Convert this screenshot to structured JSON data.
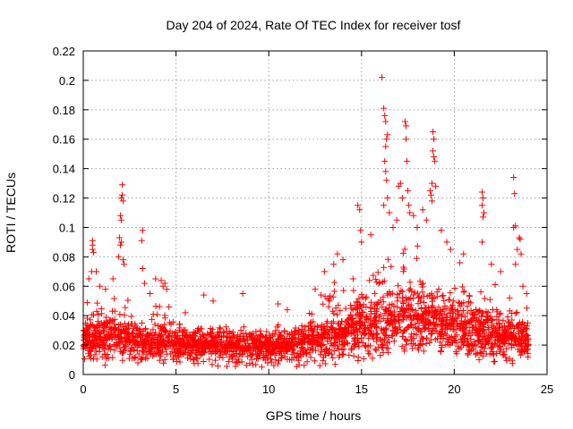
{
  "chart_data": {
    "type": "scatter",
    "title": "Day 204 of 2024, Rate Of TEC Index for receiver tosf",
    "xlabel": "GPS time / hours",
    "ylabel": "ROTI / TECUs",
    "xlim": [
      0,
      25
    ],
    "ylim": [
      0,
      0.22
    ],
    "xticks": [
      0,
      5,
      10,
      15,
      20,
      25
    ],
    "yticks": [
      0,
      0.02,
      0.04,
      0.06,
      0.08,
      0.1,
      0.12,
      0.14,
      0.16,
      0.18,
      0.2,
      0.22
    ],
    "grid": true,
    "marker": "+",
    "color": "#ff0000",
    "profile": {
      "x": [
        0,
        1,
        2,
        3,
        4,
        5,
        6,
        7,
        8,
        9,
        10,
        11,
        12,
        13,
        14,
        15,
        16,
        17,
        18,
        19,
        20,
        21,
        22,
        23,
        24
      ],
      "median": [
        0.022,
        0.024,
        0.024,
        0.022,
        0.022,
        0.02,
        0.019,
        0.019,
        0.018,
        0.018,
        0.018,
        0.018,
        0.021,
        0.024,
        0.026,
        0.03,
        0.034,
        0.036,
        0.036,
        0.034,
        0.031,
        0.028,
        0.026,
        0.024,
        0.022
      ],
      "upper": [
        0.045,
        0.055,
        0.055,
        0.045,
        0.05,
        0.04,
        0.038,
        0.037,
        0.035,
        0.034,
        0.033,
        0.035,
        0.045,
        0.06,
        0.068,
        0.075,
        0.085,
        0.09,
        0.088,
        0.08,
        0.07,
        0.065,
        0.062,
        0.055,
        0.045
      ]
    },
    "points": [
      {
        "x": 0.5,
        "y": 0.091
      },
      {
        "x": 0.5,
        "y": 0.088
      },
      {
        "x": 0.5,
        "y": 0.085
      },
      {
        "x": 0.55,
        "y": 0.083
      },
      {
        "x": 0.45,
        "y": 0.07
      },
      {
        "x": 0.3,
        "y": 0.065
      },
      {
        "x": 0.7,
        "y": 0.07
      },
      {
        "x": 0.9,
        "y": 0.06
      },
      {
        "x": 1.2,
        "y": 0.058
      },
      {
        "x": 1.6,
        "y": 0.065
      },
      {
        "x": 1.9,
        "y": 0.08
      },
      {
        "x": 1.95,
        "y": 0.093
      },
      {
        "x": 2.0,
        "y": 0.088
      },
      {
        "x": 2.05,
        "y": 0.09
      },
      {
        "x": 2.0,
        "y": 0.108
      },
      {
        "x": 2.05,
        "y": 0.105
      },
      {
        "x": 2.05,
        "y": 0.12
      },
      {
        "x": 2.1,
        "y": 0.122
      },
      {
        "x": 2.1,
        "y": 0.129
      },
      {
        "x": 2.15,
        "y": 0.118
      },
      {
        "x": 2.15,
        "y": 0.078
      },
      {
        "x": 2.2,
        "y": 0.075
      },
      {
        "x": 3.2,
        "y": 0.098
      },
      {
        "x": 3.15,
        "y": 0.091
      },
      {
        "x": 3.2,
        "y": 0.072
      },
      {
        "x": 3.3,
        "y": 0.062
      },
      {
        "x": 3.6,
        "y": 0.055
      },
      {
        "x": 3.9,
        "y": 0.065
      },
      {
        "x": 4.2,
        "y": 0.064
      },
      {
        "x": 4.3,
        "y": 0.06
      },
      {
        "x": 4.4,
        "y": 0.062
      },
      {
        "x": 4.5,
        "y": 0.058
      },
      {
        "x": 5.5,
        "y": 0.042
      },
      {
        "x": 6.5,
        "y": 0.054
      },
      {
        "x": 7.0,
        "y": 0.05
      },
      {
        "x": 8.6,
        "y": 0.055
      },
      {
        "x": 10.5,
        "y": 0.048
      },
      {
        "x": 11.0,
        "y": 0.044
      },
      {
        "x": 12.5,
        "y": 0.058
      },
      {
        "x": 13.0,
        "y": 0.07
      },
      {
        "x": 13.5,
        "y": 0.075
      },
      {
        "x": 13.7,
        "y": 0.082
      },
      {
        "x": 14.0,
        "y": 0.078
      },
      {
        "x": 14.8,
        "y": 0.115
      },
      {
        "x": 14.9,
        "y": 0.112
      },
      {
        "x": 14.95,
        "y": 0.098
      },
      {
        "x": 15.0,
        "y": 0.09
      },
      {
        "x": 15.5,
        "y": 0.095
      },
      {
        "x": 16.1,
        "y": 0.202
      },
      {
        "x": 16.2,
        "y": 0.181
      },
      {
        "x": 16.25,
        "y": 0.176
      },
      {
        "x": 16.3,
        "y": 0.172
      },
      {
        "x": 16.35,
        "y": 0.16
      },
      {
        "x": 16.4,
        "y": 0.163
      },
      {
        "x": 16.3,
        "y": 0.155
      },
      {
        "x": 16.25,
        "y": 0.145
      },
      {
        "x": 16.3,
        "y": 0.138
      },
      {
        "x": 16.35,
        "y": 0.132
      },
      {
        "x": 16.4,
        "y": 0.12
      },
      {
        "x": 16.5,
        "y": 0.11
      },
      {
        "x": 16.2,
        "y": 0.115
      },
      {
        "x": 16.7,
        "y": 0.1
      },
      {
        "x": 16.9,
        "y": 0.105
      },
      {
        "x": 17.0,
        "y": 0.128
      },
      {
        "x": 17.1,
        "y": 0.13
      },
      {
        "x": 17.2,
        "y": 0.12
      },
      {
        "x": 17.35,
        "y": 0.172
      },
      {
        "x": 17.4,
        "y": 0.169
      },
      {
        "x": 17.4,
        "y": 0.16
      },
      {
        "x": 17.45,
        "y": 0.145
      },
      {
        "x": 17.5,
        "y": 0.125
      },
      {
        "x": 17.55,
        "y": 0.115
      },
      {
        "x": 17.6,
        "y": 0.11
      },
      {
        "x": 17.8,
        "y": 0.108
      },
      {
        "x": 18.0,
        "y": 0.1
      },
      {
        "x": 18.3,
        "y": 0.112
      },
      {
        "x": 18.5,
        "y": 0.105
      },
      {
        "x": 18.7,
        "y": 0.125
      },
      {
        "x": 18.75,
        "y": 0.122
      },
      {
        "x": 18.8,
        "y": 0.118
      },
      {
        "x": 18.85,
        "y": 0.165
      },
      {
        "x": 18.9,
        "y": 0.16
      },
      {
        "x": 18.85,
        "y": 0.152
      },
      {
        "x": 18.9,
        "y": 0.148
      },
      {
        "x": 18.95,
        "y": 0.145
      },
      {
        "x": 18.8,
        "y": 0.13
      },
      {
        "x": 19.0,
        "y": 0.128
      },
      {
        "x": 19.3,
        "y": 0.098
      },
      {
        "x": 19.6,
        "y": 0.09
      },
      {
        "x": 19.8,
        "y": 0.085
      },
      {
        "x": 20.3,
        "y": 0.076
      },
      {
        "x": 20.5,
        "y": 0.082
      },
      {
        "x": 21.5,
        "y": 0.124
      },
      {
        "x": 21.55,
        "y": 0.12
      },
      {
        "x": 21.5,
        "y": 0.115
      },
      {
        "x": 21.6,
        "y": 0.11
      },
      {
        "x": 21.55,
        "y": 0.107
      },
      {
        "x": 21.5,
        "y": 0.09
      },
      {
        "x": 22.0,
        "y": 0.075
      },
      {
        "x": 22.5,
        "y": 0.07
      },
      {
        "x": 23.2,
        "y": 0.134
      },
      {
        "x": 23.25,
        "y": 0.123
      },
      {
        "x": 23.3,
        "y": 0.101
      },
      {
        "x": 23.2,
        "y": 0.1
      },
      {
        "x": 23.5,
        "y": 0.093
      },
      {
        "x": 23.55,
        "y": 0.092
      },
      {
        "x": 23.4,
        "y": 0.085
      },
      {
        "x": 23.6,
        "y": 0.082
      },
      {
        "x": 23.3,
        "y": 0.075
      },
      {
        "x": 23.7,
        "y": 0.06
      },
      {
        "x": 23.9,
        "y": 0.055
      }
    ]
  }
}
